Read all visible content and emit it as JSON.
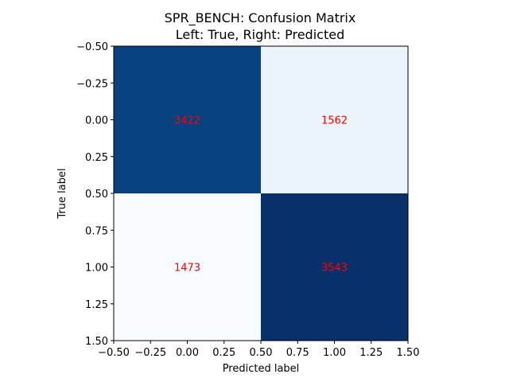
{
  "chart_data": {
    "type": "heatmap",
    "title": "SPR_BENCH: Confusion Matrix",
    "subtitle": "Left: True, Right: Predicted",
    "xlabel": "Predicted label",
    "ylabel": "True label",
    "xlim": [
      -0.5,
      1.5
    ],
    "ylim": [
      1.5,
      -0.5
    ],
    "xticks": [
      "−0.50",
      "−0.25",
      "0.00",
      "0.25",
      "0.50",
      "0.75",
      "1.00",
      "1.25",
      "1.50"
    ],
    "yticks": [
      "−0.50",
      "−0.25",
      "0.00",
      "0.25",
      "0.50",
      "0.75",
      "1.00",
      "1.25",
      "1.50"
    ],
    "tick_values": [
      -0.5,
      -0.25,
      0,
      0.25,
      0.5,
      0.75,
      1.0,
      1.25,
      1.5
    ],
    "matrix": [
      [
        3422,
        1562
      ],
      [
        1473,
        3543
      ]
    ],
    "colormap": "Blues",
    "cell_colors": [
      [
        "#08417f",
        "#ebf3fb"
      ],
      [
        "#f7fbff",
        "#08306b"
      ]
    ],
    "annotation_color": "#ff0000",
    "grid": false
  }
}
